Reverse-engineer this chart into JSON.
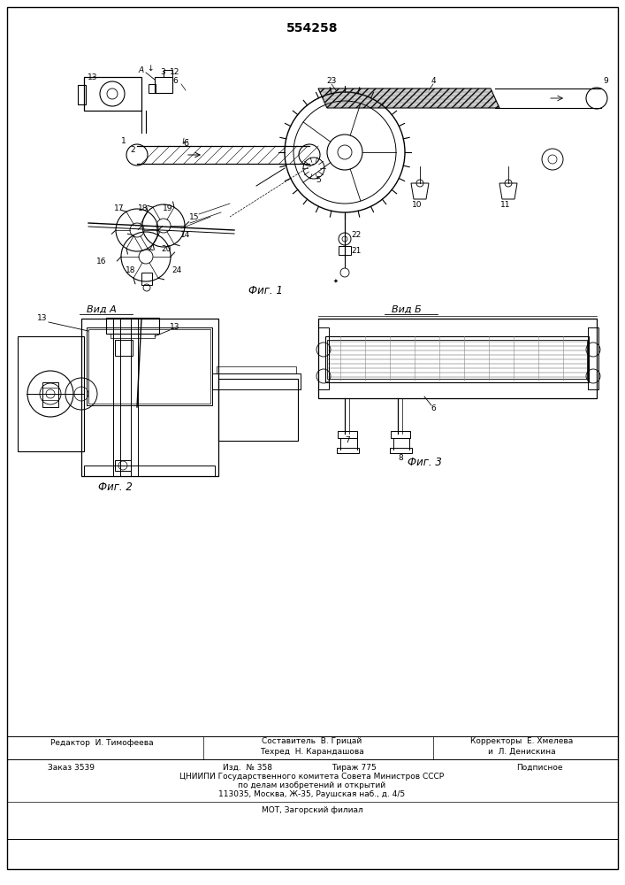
{
  "title": "554258",
  "bg_color": "#ffffff",
  "fig1_caption": "Фиг. 1",
  "fig2_caption": "Фиг. 2",
  "fig3_caption": "Фиг. 3",
  "vid_a": "Вид А",
  "vid_b": "Вид Б",
  "footer_line1_left": "Редактор  И. Тимофеева",
  "footer_line1_mid": "Составитель  В. Грицай",
  "footer_line2_mid": "Техред  Н. Карандашова",
  "footer_line1_right": "Корректоры  Е. Хмелева",
  "footer_line2_right": "и  Л. Денискина",
  "footer2_left": "Заказ 3539",
  "footer2_mid_label": "Изд.  № 358",
  "footer2_mid_tirazh": "Тираж 775",
  "footer2_right": "Подписное",
  "footer3": "ЦНИИПИ Государственного комитета Совета Министров СССР",
  "footer4": "по делам изобретений и открытий",
  "footer5": "113035, Москва, Ж-35, Раушская наб., д. 4/5",
  "footer6": "МОТ, Загорский филиал"
}
